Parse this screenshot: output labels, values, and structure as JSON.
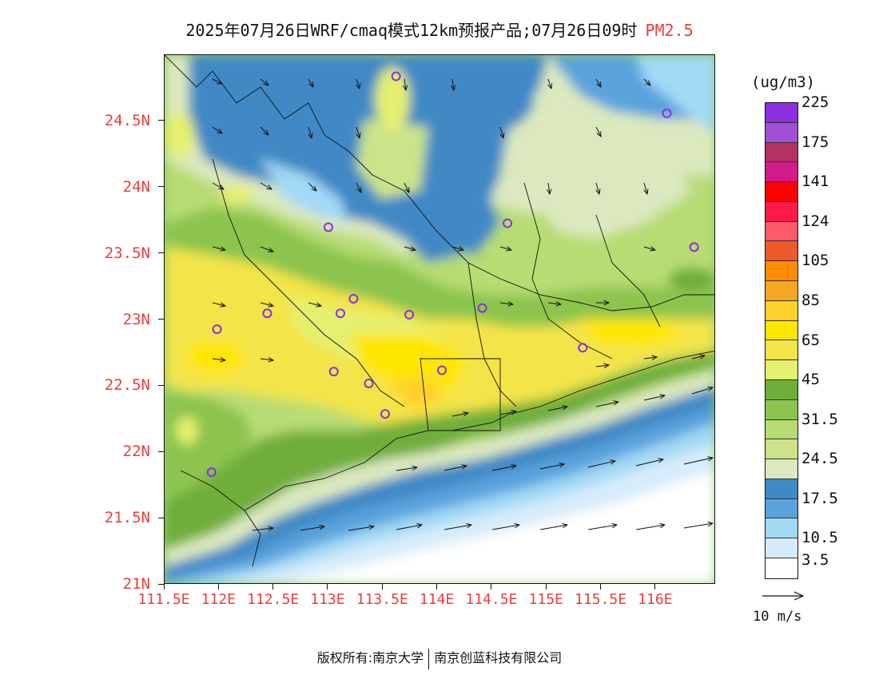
{
  "title": {
    "text": "2025年07月26日WRF/cmaq模式12km预报产品;07月26日09时",
    "pollutant": "PM2.5"
  },
  "map": {
    "lat_ticks": [
      {
        "label": "24.5N",
        "lat": 24.5
      },
      {
        "label": "24N",
        "lat": 24.0
      },
      {
        "label": "23.5N",
        "lat": 23.5
      },
      {
        "label": "23N",
        "lat": 23.0
      },
      {
        "label": "22.5N",
        "lat": 22.5
      },
      {
        "label": "22N",
        "lat": 22.0
      },
      {
        "label": "21.5N",
        "lat": 21.5
      },
      {
        "label": "21N",
        "lat": 21.0
      }
    ],
    "lon_ticks": [
      {
        "label": "111.5E",
        "lon": 111.5
      },
      {
        "label": "112E",
        "lon": 112.0
      },
      {
        "label": "112.5E",
        "lon": 112.5
      },
      {
        "label": "113E",
        "lon": 113.0
      },
      {
        "label": "113.5E",
        "lon": 113.5
      },
      {
        "label": "114E",
        "lon": 114.0
      },
      {
        "label": "114.5E",
        "lon": 114.5
      },
      {
        "label": "115E",
        "lon": 115.0
      },
      {
        "label": "115.5E",
        "lon": 115.5
      },
      {
        "label": "116E",
        "lon": 116.0
      }
    ],
    "lon_range": [
      111.5,
      116.55
    ],
    "lat_range": [
      21.0,
      25.0
    ],
    "stations": [
      {
        "lon": 113.62,
        "lat": 24.84
      },
      {
        "lon": 113.0,
        "lat": 23.7
      },
      {
        "lon": 111.98,
        "lat": 22.93
      },
      {
        "lon": 112.44,
        "lat": 23.05
      },
      {
        "lon": 113.11,
        "lat": 23.05
      },
      {
        "lon": 113.23,
        "lat": 23.16
      },
      {
        "lon": 113.74,
        "lat": 23.04
      },
      {
        "lon": 114.41,
        "lat": 23.09
      },
      {
        "lon": 114.64,
        "lat": 23.73
      },
      {
        "lon": 116.1,
        "lat": 24.56
      },
      {
        "lon": 116.35,
        "lat": 23.55
      },
      {
        "lon": 113.05,
        "lat": 22.61
      },
      {
        "lon": 113.37,
        "lat": 22.52
      },
      {
        "lon": 114.04,
        "lat": 22.62
      },
      {
        "lon": 113.52,
        "lat": 22.29
      },
      {
        "lon": 111.93,
        "lat": 21.85
      },
      {
        "lon": 115.33,
        "lat": 22.79
      }
    ]
  },
  "colorbar": {
    "units": "(ug/m3)",
    "colors": [
      "#8b2fe0",
      "#a04fd6",
      "#b23363",
      "#d01c8b",
      "#ff0000",
      "#ff1a4b",
      "#ff5a6a",
      "#ee5a2a",
      "#ff8c00",
      "#f5a623",
      "#ffd12b",
      "#ffe600",
      "#f3e44a",
      "#e4f070",
      "#6fae3a",
      "#8cc44e",
      "#b7dc73",
      "#cbe48a",
      "#dce9bf",
      "#3f89c5",
      "#5aa3dd",
      "#a2d9f5",
      "#d6ecfa",
      "#ffffff"
    ],
    "labels": [
      {
        "text": "225",
        "index": 1
      },
      {
        "text": "175",
        "index": 3
      },
      {
        "text": "141",
        "index": 5
      },
      {
        "text": "124",
        "index": 7
      },
      {
        "text": "105",
        "index": 9
      },
      {
        "text": "85",
        "index": 11
      },
      {
        "text": "65",
        "index": 13
      },
      {
        "text": "45",
        "index": 15
      },
      {
        "text": "31.5",
        "index": 17
      },
      {
        "text": "24.5",
        "index": 19
      },
      {
        "text": "17.5",
        "index": 21
      },
      {
        "text": "10.5",
        "index": 23
      },
      {
        "text": "3.5",
        "index": 25
      }
    ]
  },
  "wind_reference": {
    "label": "10 m/s"
  },
  "footer": {
    "left": "版权所有:南京大学",
    "right": "南京创蓝科技有限公司"
  }
}
